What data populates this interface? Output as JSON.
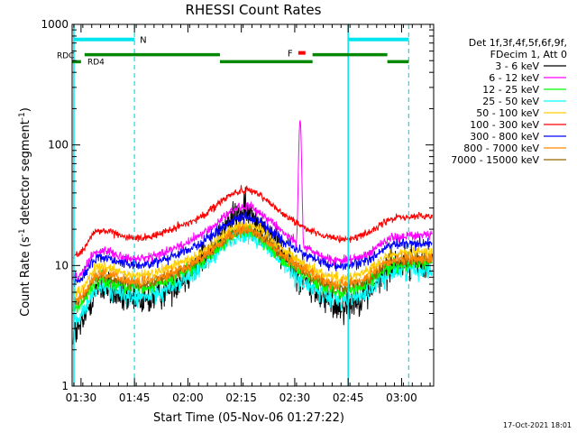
{
  "chart_data": {
    "type": "line",
    "title": "RHESSI Count Rates",
    "xlabel": "Start Time (05-Nov-06 01:27:22)",
    "ylabel_parts": [
      "Count Rate (s",
      "-1",
      " detector segment",
      "-1",
      ")"
    ],
    "yscale": "log",
    "ylim": [
      1,
      1000
    ],
    "xlim_minutes": [
      87.5,
      189
    ],
    "x_ticks": [
      {
        "m": 90,
        "label": "01:30"
      },
      {
        "m": 105,
        "label": "01:45"
      },
      {
        "m": 120,
        "label": "02:00"
      },
      {
        "m": 135,
        "label": "02:15"
      },
      {
        "m": 150,
        "label": "02:30"
      },
      {
        "m": 165,
        "label": "02:45"
      },
      {
        "m": 180,
        "label": "03:00"
      }
    ],
    "y_ticks": [
      {
        "v": 1,
        "label": "1"
      },
      {
        "v": 10,
        "label": "10"
      },
      {
        "v": 100,
        "label": "100"
      },
      {
        "v": 1000,
        "label": "1000"
      }
    ],
    "legend_header": [
      "Det 1f,3f,4f,5f,6f,9f,",
      "FDecim 1, Att 0"
    ],
    "series": [
      {
        "name": "3 - 6 keV",
        "color": "#000000",
        "base": 4.0,
        "amp": 3.0,
        "noise": 0.09,
        "flare": 0
      },
      {
        "name": "6 - 12 keV",
        "color": "#ff00ff",
        "base": 10.0,
        "amp": 1.9,
        "noise": 0.025,
        "flare": 145
      },
      {
        "name": "12 - 25 keV",
        "color": "#00ff00",
        "base": 5.6,
        "amp": 2.0,
        "noise": 0.04,
        "flare": 0
      },
      {
        "name": "25 - 50 keV",
        "color": "#00ffff",
        "base": 4.6,
        "amp": 2.2,
        "noise": 0.05,
        "flare": 0
      },
      {
        "name": "50 - 100 keV",
        "color": "#ffcc00",
        "base": 7.2,
        "amp": 1.9,
        "noise": 0.03,
        "flare": 0
      },
      {
        "name": "100 - 300 keV",
        "color": "#ff0000",
        "base": 15.0,
        "amp": 1.8,
        "noise": 0.02,
        "flare": 0
      },
      {
        "name": "300 - 800 keV",
        "color": "#0000ff",
        "base": 9.0,
        "amp": 1.8,
        "noise": 0.03,
        "flare": 0
      },
      {
        "name": "800 - 7000 keV",
        "color": "#ff8800",
        "base": 6.4,
        "amp": 1.9,
        "noise": 0.03,
        "flare": 0
      },
      {
        "name": "7000 - 15000 keV",
        "color": "#996600",
        "base": 6.0,
        "amp": 2.0,
        "noise": 0.03,
        "flare": 0
      }
    ],
    "annotations": {
      "night_label": "N",
      "flare_label": "F",
      "rdc_label": "RDC",
      "rd4_label": "RD4",
      "night_bars": [
        [
          88,
          105
        ],
        [
          165,
          182
        ]
      ],
      "flare_bar": [
        151,
        153
      ],
      "rdc_bars": [
        [
          91,
          129
        ],
        [
          155,
          176
        ]
      ],
      "rd4_bars": [
        [
          87.5,
          90
        ],
        [
          129,
          155
        ],
        [
          176,
          182
        ]
      ],
      "saa_lines": [
        88,
        105,
        165,
        182
      ]
    }
  },
  "footer_timestamp": "17-Oct-2021 18:01"
}
